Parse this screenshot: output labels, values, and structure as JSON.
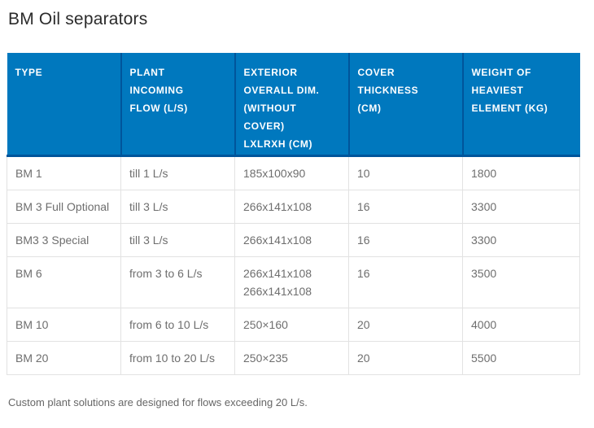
{
  "page": {
    "title": "BM Oil separators",
    "footnote": "Custom plant solutions are designed for flows exceeding 20 L/s."
  },
  "table": {
    "columns": [
      "TYPE",
      "PLANT\nINCOMING\nFLOW (L/S)",
      "EXTERIOR\nOVERALL DIM.\n(WITHOUT\nCOVER)\nLXLRXH (CM)",
      "COVER\nTHICKNESS\n(CM)",
      "WEIGHT OF\nHEAVIEST\nELEMENT (KG)"
    ],
    "rows": [
      {
        "type": "BM 1",
        "flow": "till 1 L/s",
        "dims": "185x100x90",
        "cover": "10",
        "weight": "1800"
      },
      {
        "type": "BM 3 Full Optional",
        "flow": "till 3 L/s",
        "dims": "266x141x108",
        "cover": "16",
        "weight": "3300"
      },
      {
        "type": "BM3 3 Special",
        "flow": "till 3 L/s",
        "dims": "266x141x108",
        "cover": "16",
        "weight": "3300"
      },
      {
        "type": "BM 6",
        "flow": "from 3 to 6 L/s",
        "dims": "266x141x108\n266x141x108",
        "cover": "16",
        "weight": "3500"
      },
      {
        "type": "BM 10",
        "flow": "from 6 to 10 L/s",
        "dims": "250×160",
        "cover": "20",
        "weight": "4000"
      },
      {
        "type": "BM 20",
        "flow": "from 10 to 20 L/s",
        "dims": "250×235",
        "cover": "20",
        "weight": "5500"
      }
    ]
  },
  "colors": {
    "header_background": "#0078be",
    "header_divider": "#00559b",
    "header_text": "#ffffff",
    "body_border": "#e2e2e2",
    "body_text": "#6e6e6e",
    "title_text": "#2b2b2b",
    "footnote_text": "#666666"
  }
}
